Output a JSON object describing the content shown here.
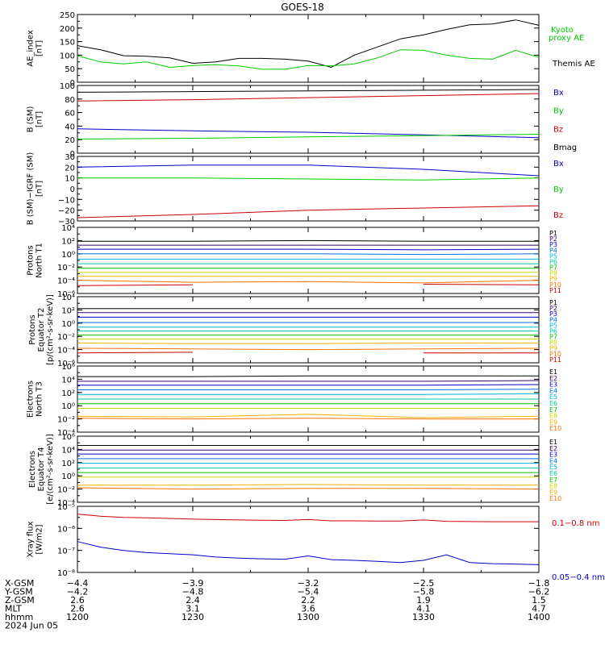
{
  "title": "GOES-18",
  "colors": {
    "black": "#000000",
    "green": "#00cc00",
    "blue": "#0000cc",
    "red": "#cc0000",
    "proton_channels": [
      "#000000",
      "#3a006a",
      "#0000cc",
      "#0070dd",
      "#00b0e0",
      "#00c8a0",
      "#00c000",
      "#c8d800",
      "#f0b000",
      "#ff7000",
      "#cc0000"
    ],
    "electron_channels": [
      "#000000",
      "#3a006a",
      "#0000cc",
      "#0070dd",
      "#00b0e0",
      "#00c8a0",
      "#00c000",
      "#c8d800",
      "#f0b000",
      "#ff7000",
      "#cc0000"
    ]
  },
  "panels": [
    {
      "id": "ae",
      "ylabel": [
        "AE_index",
        "[nT]"
      ],
      "yscale": "linear",
      "ylim": [
        0,
        250
      ],
      "ticks": [
        "0",
        "50",
        "100",
        "150",
        "200",
        "250"
      ],
      "legend": [
        {
          "text": "Kyoto",
          "color": "#00cc00"
        },
        {
          "text": "proxy AE",
          "color": "#00cc00"
        },
        {
          "text": "Themis AE",
          "color": "#000000"
        }
      ]
    },
    {
      "id": "bsm",
      "ylabel": [
        "B (SM)",
        "[nT]"
      ],
      "yscale": "linear",
      "ylim": [
        0,
        100
      ],
      "ticks": [
        "0",
        "20",
        "40",
        "60",
        "80",
        "100"
      ],
      "legend": [
        {
          "text": "Bx",
          "color": "#0000cc"
        },
        {
          "text": "By",
          "color": "#00cc00"
        },
        {
          "text": "Bz",
          "color": "#cc0000"
        },
        {
          "text": "Bmag",
          "color": "#000000"
        }
      ]
    },
    {
      "id": "bigrf",
      "ylabel": [
        "B (SM)−IGRF (SM)",
        "[nT]"
      ],
      "yscale": "linear",
      "ylim": [
        -30,
        30
      ],
      "ticks": [
        "−30",
        "−20",
        "−10",
        "0",
        "10",
        "20",
        "30"
      ],
      "legend": [
        {
          "text": "Bx",
          "color": "#0000cc"
        },
        {
          "text": "By",
          "color": "#00cc00"
        },
        {
          "text": "Bz",
          "color": "#cc0000"
        }
      ]
    },
    {
      "id": "pt1",
      "ylabel": [
        "Protons",
        "North T1"
      ],
      "yscale": "log",
      "ylim": [
        -6,
        4
      ],
      "ticks": [
        "10⁻⁶",
        "10⁻⁴",
        "10⁻²",
        "10⁰",
        "10²",
        "10⁴"
      ],
      "channel_legend": [
        "P1",
        "P2",
        "P3",
        "P4",
        "P5",
        "P6",
        "P7",
        "P8",
        "P9",
        "P10",
        "P11"
      ]
    },
    {
      "id": "pt2",
      "ylabel": [
        "Protons",
        "Equator T2",
        "[p/(cm²-s-sr-keV)]"
      ],
      "yscale": "log",
      "ylim": [
        -6,
        4
      ],
      "ticks": [
        "10⁻⁶",
        "10⁻⁴",
        "10⁻²",
        "10⁰",
        "10²",
        "10⁴"
      ],
      "channel_legend": [
        "P1",
        "P2",
        "P3",
        "P4",
        "P5",
        "P6",
        "P7",
        "P8",
        "P9",
        "P10",
        "P11"
      ]
    },
    {
      "id": "et3",
      "ylabel": [
        "Electrons",
        "North T3"
      ],
      "yscale": "log",
      "ylim": [
        -4,
        6
      ],
      "ticks": [
        "10⁻⁴",
        "10⁻²",
        "10⁰",
        "10²",
        "10⁴",
        "10⁶"
      ],
      "channel_legend": [
        "E1",
        "E2",
        "E3",
        "E4",
        "E5",
        "E6",
        "E7",
        "E8",
        "E9",
        "E10"
      ]
    },
    {
      "id": "et4",
      "ylabel": [
        "Electrons",
        "Equator T4",
        "[e/(cm²-s-sr-keV)]"
      ],
      "yscale": "log",
      "ylim": [
        -4,
        6
      ],
      "ticks": [
        "10⁻⁴",
        "10⁻²",
        "10⁰",
        "10²",
        "10⁴",
        "10⁶"
      ],
      "channel_legend": [
        "E1",
        "E2",
        "E3",
        "E4",
        "E5",
        "E6",
        "E7",
        "E8",
        "E9",
        "E10"
      ]
    },
    {
      "id": "xray",
      "ylabel": [
        "Xray flux",
        "[W/m2]"
      ],
      "yscale": "log",
      "ylim": [
        -8,
        -5
      ],
      "ticks": [
        "10⁻⁸",
        "10⁻⁷",
        "10⁻⁶",
        "10⁻⁵"
      ],
      "legend": [
        {
          "text": "0.1−0.8 nm",
          "color": "#cc0000"
        },
        {
          "text": "0.05−0.4 nm",
          "color": "#0000cc"
        }
      ]
    }
  ],
  "x_axis": {
    "range": [
      1200,
      1400
    ],
    "row_labels": [
      "X-GSM",
      "Y-GSM",
      "Z-GSM",
      "MLT",
      "hhmm",
      "2024 Jun 05"
    ],
    "columns": [
      {
        "X-GSM": "−4.4",
        "Y-GSM": "−4.2",
        "Z-GSM": "2.6",
        "MLT": "2.6",
        "hhmm": "1200"
      },
      {
        "X-GSM": "−3.9",
        "Y-GSM": "−4.8",
        "Z-GSM": "2.4",
        "MLT": "3.1",
        "hhmm": "1230"
      },
      {
        "X-GSM": "−3.2",
        "Y-GSM": "−5.4",
        "Z-GSM": "2.2",
        "MLT": "3.6",
        "hhmm": "1300"
      },
      {
        "X-GSM": "−2.5",
        "Y-GSM": "−5.8",
        "Z-GSM": "1.9",
        "MLT": "4.1",
        "hhmm": "1330"
      },
      {
        "X-GSM": "−1.8",
        "Y-GSM": "−6.2",
        "Z-GSM": "1.5",
        "MLT": "4.7",
        "hhmm": "1400"
      }
    ]
  },
  "chart_data": [
    {
      "type": "line",
      "panel": "ae",
      "ylim": [
        0,
        250
      ],
      "x": [
        0,
        10,
        20,
        30,
        40,
        50,
        60,
        70,
        80,
        90,
        100,
        110,
        120,
        130,
        140,
        150,
        160,
        170,
        180,
        190,
        200
      ],
      "series": [
        {
          "name": "Themis AE",
          "color": "#000000",
          "values": [
            135,
            120,
            98,
            96,
            90,
            70,
            75,
            88,
            88,
            85,
            78,
            55,
            100,
            130,
            160,
            175,
            195,
            212,
            215,
            230,
            210
          ]
        },
        {
          "name": "Kyoto proxy AE",
          "color": "#00cc00",
          "values": [
            98,
            75,
            68,
            75,
            55,
            62,
            65,
            60,
            48,
            48,
            62,
            60,
            68,
            90,
            120,
            118,
            100,
            88,
            85,
            118,
            92
          ]
        }
      ]
    },
    {
      "type": "line",
      "panel": "bsm",
      "ylim": [
        0,
        100
      ],
      "x": [
        0,
        50,
        100,
        150,
        200
      ],
      "series": [
        {
          "name": "Bmag",
          "color": "#000000",
          "values": [
            90,
            91,
            92,
            93,
            94
          ]
        },
        {
          "name": "Bz",
          "color": "#cc0000",
          "values": [
            77,
            79,
            82,
            85,
            88
          ]
        },
        {
          "name": "Bx",
          "color": "#0000cc",
          "values": [
            36,
            33,
            31,
            27,
            23
          ]
        },
        {
          "name": "By",
          "color": "#00cc00",
          "values": [
            21,
            22,
            24,
            26,
            28
          ]
        }
      ]
    },
    {
      "type": "line",
      "panel": "bigrf",
      "ylim": [
        -30,
        30
      ],
      "x": [
        0,
        50,
        100,
        150,
        200
      ],
      "series": [
        {
          "name": "Bx",
          "color": "#0000cc",
          "values": [
            20,
            22,
            22,
            18,
            12
          ]
        },
        {
          "name": "By",
          "color": "#00cc00",
          "values": [
            10,
            10,
            9,
            8,
            10
          ]
        },
        {
          "name": "Bz",
          "color": "#cc0000",
          "values": [
            -27,
            -24,
            -20,
            -18,
            -16
          ]
        }
      ]
    },
    {
      "type": "line",
      "panel": "pt1",
      "yscale": "log10",
      "ylim": [
        -6,
        4
      ],
      "x": [
        0,
        50,
        100,
        150,
        200
      ],
      "series": [
        {
          "name": "P1",
          "values": [
            1.9,
            1.9,
            2.0,
            1.9,
            1.9
          ]
        },
        {
          "name": "P2",
          "values": [
            1.3,
            1.3,
            1.3,
            1.3,
            1.3
          ]
        },
        {
          "name": "P3",
          "values": [
            0.7,
            0.7,
            0.7,
            0.6,
            0.7
          ]
        },
        {
          "name": "P4",
          "values": [
            0.0,
            0.0,
            0.0,
            -0.1,
            0.0
          ]
        },
        {
          "name": "P5",
          "values": [
            -0.8,
            -0.8,
            -0.8,
            -0.8,
            -0.8
          ]
        },
        {
          "name": "P6",
          "values": [
            -1.5,
            -1.5,
            -1.5,
            -1.5,
            -1.5
          ]
        },
        {
          "name": "P7",
          "values": [
            -2.2,
            -2.2,
            -2.2,
            -2.2,
            -2.2
          ]
        },
        {
          "name": "P8",
          "values": [
            -2.8,
            -2.8,
            -2.8,
            -2.8,
            -2.8
          ]
        },
        {
          "name": "P9",
          "values": [
            -3.4,
            -3.4,
            -3.4,
            -3.4,
            -3.4
          ]
        },
        {
          "name": "P10",
          "values": [
            -4.0,
            -4.3,
            -4.2,
            -4.4,
            -4.0
          ]
        },
        {
          "name": "P11",
          "values": [
            -4.8,
            -4.7,
            null,
            -4.6,
            -4.7
          ]
        }
      ]
    },
    {
      "type": "line",
      "panel": "pt2",
      "yscale": "log10",
      "ylim": [
        -6,
        4
      ],
      "x": [
        0,
        50,
        100,
        150,
        200
      ],
      "series": [
        {
          "name": "P1",
          "values": [
            2.2,
            2.2,
            2.2,
            2.2,
            2.2
          ]
        },
        {
          "name": "P2",
          "values": [
            1.6,
            1.6,
            1.6,
            1.6,
            1.6
          ]
        },
        {
          "name": "P3",
          "values": [
            0.9,
            0.9,
            0.9,
            0.9,
            0.9
          ]
        },
        {
          "name": "P4",
          "values": [
            0.1,
            0.1,
            0.1,
            0.1,
            0.1
          ]
        },
        {
          "name": "P5",
          "values": [
            -0.6,
            -0.6,
            -0.6,
            -0.6,
            -0.6
          ]
        },
        {
          "name": "P6",
          "values": [
            -1.2,
            -1.2,
            -1.2,
            -1.2,
            -1.2
          ]
        },
        {
          "name": "P7",
          "values": [
            -1.8,
            -1.8,
            -1.8,
            -1.8,
            -1.8
          ]
        },
        {
          "name": "P8",
          "values": [
            -2.4,
            -2.4,
            -2.4,
            -2.4,
            -2.4
          ]
        },
        {
          "name": "P9",
          "values": [
            -3.0,
            -3.1,
            -3.1,
            -3.0,
            -3.0
          ]
        },
        {
          "name": "P10",
          "values": [
            -3.8,
            -3.9,
            -4.0,
            -3.9,
            -3.8
          ]
        },
        {
          "name": "P11",
          "values": [
            -4.5,
            -4.4,
            null,
            -4.5,
            -4.5
          ]
        }
      ]
    },
    {
      "type": "line",
      "panel": "et3",
      "yscale": "log10",
      "ylim": [
        -4,
        6
      ],
      "x": [
        0,
        50,
        100,
        150,
        200
      ],
      "series": [
        {
          "name": "E1",
          "values": [
            4.4,
            4.4,
            4.5,
            4.5,
            4.5
          ]
        },
        {
          "name": "E2",
          "values": [
            3.7,
            3.7,
            3.7,
            3.7,
            3.8
          ]
        },
        {
          "name": "E3",
          "values": [
            3.1,
            3.1,
            3.1,
            3.1,
            3.2
          ]
        },
        {
          "name": "E4",
          "values": [
            2.4,
            2.4,
            2.4,
            2.4,
            2.5
          ]
        },
        {
          "name": "E5",
          "values": [
            1.7,
            1.7,
            1.7,
            1.7,
            1.8
          ]
        },
        {
          "name": "E6",
          "values": [
            1.0,
            1.0,
            1.0,
            1.0,
            1.0
          ]
        },
        {
          "name": "E7",
          "values": [
            0.3,
            0.3,
            0.3,
            0.3,
            0.3
          ]
        },
        {
          "name": "E8",
          "values": [
            -0.4,
            -0.4,
            -0.4,
            -0.4,
            -0.4
          ]
        },
        {
          "name": "E9",
          "values": [
            -1.6,
            -1.7,
            -1.3,
            -1.8,
            -1.6
          ]
        },
        {
          "name": "E10",
          "values": [
            -1.9,
            -2.0,
            -1.9,
            -2.0,
            -2.0
          ]
        }
      ]
    },
    {
      "type": "line",
      "panel": "et4",
      "yscale": "log10",
      "ylim": [
        -4,
        6
      ],
      "x": [
        0,
        50,
        100,
        150,
        200
      ],
      "series": [
        {
          "name": "E1",
          "values": [
            4.6,
            4.6,
            4.6,
            4.6,
            4.6
          ]
        },
        {
          "name": "E2",
          "values": [
            3.9,
            3.9,
            3.9,
            3.9,
            3.9
          ]
        },
        {
          "name": "E3",
          "values": [
            3.3,
            3.3,
            3.3,
            3.3,
            3.3
          ]
        },
        {
          "name": "E4",
          "values": [
            2.6,
            2.6,
            2.6,
            2.6,
            2.6
          ]
        },
        {
          "name": "E5",
          "values": [
            1.9,
            1.9,
            1.9,
            1.9,
            1.9
          ]
        },
        {
          "name": "E6",
          "values": [
            1.2,
            1.2,
            1.2,
            1.2,
            1.2
          ]
        },
        {
          "name": "E7",
          "values": [
            0.5,
            0.5,
            0.5,
            0.5,
            0.5
          ]
        },
        {
          "name": "E8",
          "values": [
            -0.2,
            -0.2,
            -0.2,
            -0.2,
            -0.2
          ]
        },
        {
          "name": "E9",
          "values": [
            -1.4,
            -1.4,
            -1.3,
            -1.4,
            -1.4
          ]
        },
        {
          "name": "E10",
          "values": [
            -1.8,
            -2.0,
            -1.9,
            -1.9,
            -2.0
          ]
        }
      ]
    },
    {
      "type": "line",
      "panel": "xray",
      "yscale": "log10",
      "ylim": [
        -8,
        -5
      ],
      "x": [
        0,
        10,
        20,
        30,
        40,
        50,
        60,
        70,
        80,
        90,
        100,
        110,
        120,
        130,
        140,
        150,
        160,
        170,
        180,
        190,
        200
      ],
      "series": [
        {
          "name": "0.1−0.8 nm",
          "color": "#cc0000",
          "values": [
            -5.35,
            -5.45,
            -5.5,
            -5.52,
            -5.55,
            -5.58,
            -5.6,
            -5.62,
            -5.63,
            -5.64,
            -5.6,
            -5.66,
            -5.66,
            -5.67,
            -5.67,
            -5.62,
            -5.68,
            -5.69,
            -5.7,
            -5.7,
            -5.7
          ]
        },
        {
          "name": "0.05−0.4 nm",
          "color": "#0000cc",
          "values": [
            -6.6,
            -6.85,
            -7.0,
            -7.1,
            -7.15,
            -7.2,
            -7.3,
            -7.35,
            -7.38,
            -7.4,
            -7.25,
            -7.42,
            -7.45,
            -7.5,
            -7.55,
            -7.45,
            -7.2,
            -7.55,
            -7.6,
            -7.62,
            -7.65
          ]
        }
      ]
    }
  ]
}
